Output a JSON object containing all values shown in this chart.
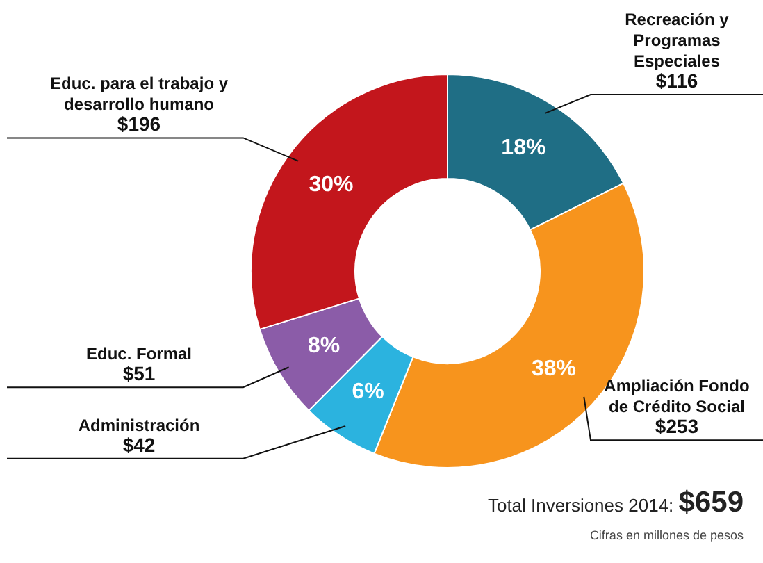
{
  "chart_data": {
    "type": "donut",
    "categories": [
      "Recreación y Programas Especiales",
      "Ampliación Fondo de Crédito Social",
      "Administración",
      "Educ. Formal",
      "Educ. para el trabajo y desarrollo humano"
    ],
    "values": [
      116,
      253,
      42,
      51,
      196
    ],
    "colors": [
      "#1f6e85",
      "#f7941d",
      "#2bb3df",
      "#8b5ca8",
      "#c3161c"
    ],
    "value_labels": [
      "$116",
      "$253",
      "$42",
      "$51",
      "$196"
    ],
    "legend": false,
    "annotations": [
      {
        "text": "18%",
        "x": "Recreación y Programas Especiales"
      },
      {
        "text": "38%",
        "x": "Ampliación Fondo de Crédito Social"
      },
      {
        "text": "6%",
        "x": "Administración"
      },
      {
        "text": "8%",
        "x": "Educ. Formal"
      },
      {
        "text": "30%",
        "x": "Educ. para el trabajo y desarrollo humano"
      },
      "Total Inversiones 2014: $659",
      "Cifras en millones de pesos"
    ]
  }
}
